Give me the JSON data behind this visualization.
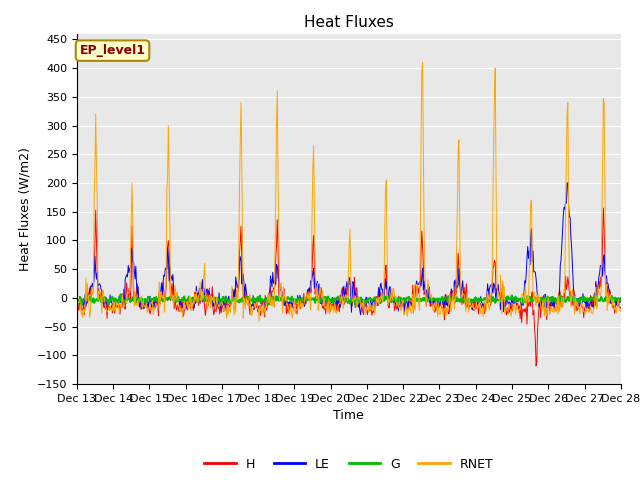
{
  "title": "Heat Fluxes",
  "xlabel": "Time",
  "ylabel": "Heat Fluxes (W/m2)",
  "ylim": [
    -150,
    460
  ],
  "yticks": [
    -150,
    -100,
    -50,
    0,
    50,
    100,
    150,
    200,
    250,
    300,
    350,
    400,
    450
  ],
  "legend_label": "EP_level1",
  "series_labels": [
    "H",
    "LE",
    "G",
    "RNET"
  ],
  "colors": {
    "H": "#ff0000",
    "LE": "#0000ff",
    "G": "#00bb00",
    "RNET": "#ffa500"
  },
  "bg_color": "#e8e8e8",
  "start_day": 13,
  "end_day": 28,
  "n_days": 15,
  "pts_per_day": 48
}
